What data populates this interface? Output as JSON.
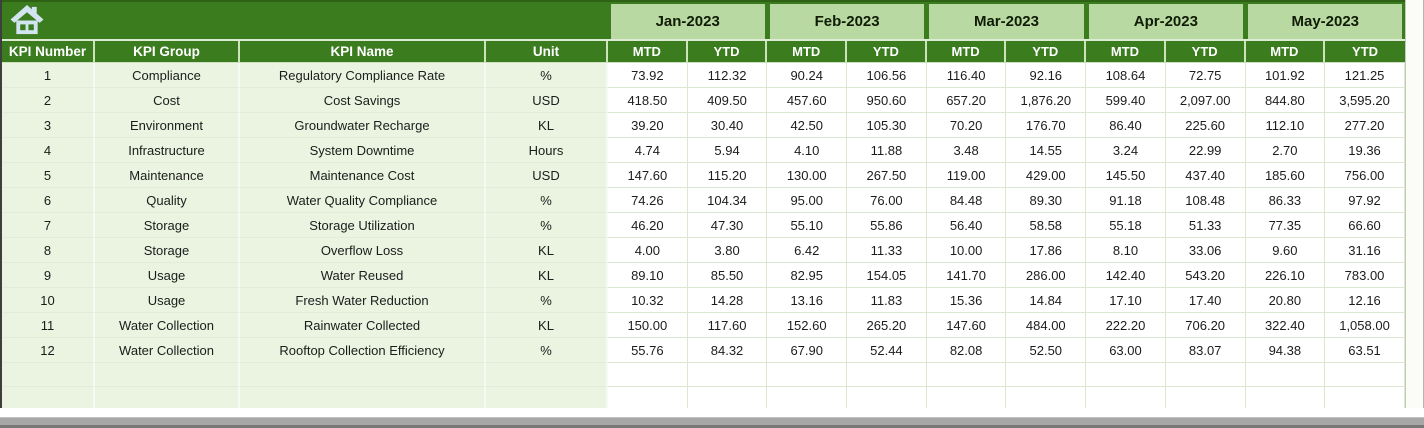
{
  "header": {
    "info_columns": [
      "KPI Number",
      "KPI Group",
      "KPI Name",
      "Unit"
    ],
    "months": [
      "Jan-2023",
      "Feb-2023",
      "Mar-2023",
      "Apr-2023",
      "May-2023"
    ],
    "sub_headers": [
      "MTD",
      "YTD"
    ]
  },
  "icons": {
    "home": "home-icon"
  },
  "table": {
    "rows": [
      {
        "number": "1",
        "group": "Compliance",
        "name": "Regulatory Compliance Rate",
        "unit": "%",
        "values": [
          "73.92",
          "112.32",
          "90.24",
          "106.56",
          "116.40",
          "92.16",
          "108.64",
          "72.75",
          "101.92",
          "121.25"
        ]
      },
      {
        "number": "2",
        "group": "Cost",
        "name": "Cost Savings",
        "unit": "USD",
        "values": [
          "418.50",
          "409.50",
          "457.60",
          "950.60",
          "657.20",
          "1,876.20",
          "599.40",
          "2,097.00",
          "844.80",
          "3,595.20"
        ]
      },
      {
        "number": "3",
        "group": "Environment",
        "name": "Groundwater Recharge",
        "unit": "KL",
        "values": [
          "39.20",
          "30.40",
          "42.50",
          "105.30",
          "70.20",
          "176.70",
          "86.40",
          "225.60",
          "112.10",
          "277.20"
        ]
      },
      {
        "number": "4",
        "group": "Infrastructure",
        "name": "System Downtime",
        "unit": "Hours",
        "values": [
          "4.74",
          "5.94",
          "4.10",
          "11.88",
          "3.48",
          "14.55",
          "3.24",
          "22.99",
          "2.70",
          "19.36"
        ]
      },
      {
        "number": "5",
        "group": "Maintenance",
        "name": "Maintenance Cost",
        "unit": "USD",
        "values": [
          "147.60",
          "115.20",
          "130.00",
          "267.50",
          "119.00",
          "429.00",
          "145.50",
          "437.40",
          "185.60",
          "756.00"
        ]
      },
      {
        "number": "6",
        "group": "Quality",
        "name": "Water Quality Compliance",
        "unit": "%",
        "values": [
          "74.26",
          "104.34",
          "95.00",
          "76.00",
          "84.48",
          "89.30",
          "91.18",
          "108.48",
          "86.33",
          "97.92"
        ]
      },
      {
        "number": "7",
        "group": "Storage",
        "name": "Storage Utilization",
        "unit": "%",
        "values": [
          "46.20",
          "47.30",
          "55.10",
          "55.86",
          "56.40",
          "58.58",
          "55.18",
          "51.33",
          "77.35",
          "66.60"
        ]
      },
      {
        "number": "8",
        "group": "Storage",
        "name": "Overflow Loss",
        "unit": "KL",
        "values": [
          "4.00",
          "3.80",
          "6.42",
          "11.33",
          "10.00",
          "17.86",
          "8.10",
          "33.06",
          "9.60",
          "31.16"
        ]
      },
      {
        "number": "9",
        "group": "Usage",
        "name": "Water Reused",
        "unit": "KL",
        "values": [
          "89.10",
          "85.50",
          "82.95",
          "154.05",
          "141.70",
          "286.00",
          "142.40",
          "543.20",
          "226.10",
          "783.00"
        ]
      },
      {
        "number": "10",
        "group": "Usage",
        "name": "Fresh Water Reduction",
        "unit": "%",
        "values": [
          "10.32",
          "14.28",
          "13.16",
          "11.83",
          "15.36",
          "14.84",
          "17.10",
          "17.40",
          "20.80",
          "12.16"
        ]
      },
      {
        "number": "11",
        "group": "Water Collection",
        "name": "Rainwater Collected",
        "unit": "KL",
        "values": [
          "150.00",
          "117.60",
          "152.60",
          "265.20",
          "147.60",
          "484.00",
          "222.20",
          "706.20",
          "322.40",
          "1,058.00"
        ]
      },
      {
        "number": "12",
        "group": "Water Collection",
        "name": "Rooftop Collection Efficiency",
        "unit": "%",
        "values": [
          "55.76",
          "84.32",
          "67.90",
          "52.44",
          "82.08",
          "52.50",
          "63.00",
          "83.07",
          "94.38",
          "63.51"
        ]
      }
    ],
    "empty_row_count": 2
  },
  "colors": {
    "header_green": "#3b7c1f",
    "month_light_green": "#b8d9a2",
    "row_pale_green": "#eaf4e1",
    "grid_line": "#dbe7d1",
    "header_text": "#ffffff",
    "body_text": "#1c1c1c",
    "home_icon_blue": "#d2e4ef",
    "scrollbar_gray": "#a7a7a7"
  }
}
